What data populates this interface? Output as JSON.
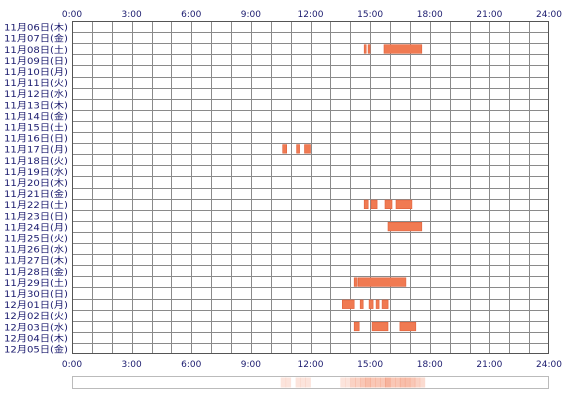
{
  "chart_data": {
    "type": "timeline",
    "x_range": [
      "0:00",
      "24:00"
    ],
    "x_ticks": [
      "0:00",
      "3:00",
      "6:00",
      "9:00",
      "12:00",
      "15:00",
      "18:00",
      "21:00",
      "24:00"
    ],
    "rows": [
      {
        "label": "11月06日(木)",
        "segments": []
      },
      {
        "label": "11月07日(金)",
        "segments": []
      },
      {
        "label": "11月08日(土)",
        "segments": [
          [
            14.7,
            14.8
          ],
          [
            14.9,
            15.0
          ],
          [
            15.7,
            17.6
          ]
        ]
      },
      {
        "label": "11月09日(日)",
        "segments": []
      },
      {
        "label": "11月10日(月)",
        "segments": []
      },
      {
        "label": "11月11日(火)",
        "segments": []
      },
      {
        "label": "11月12日(水)",
        "segments": []
      },
      {
        "label": "11月13日(木)",
        "segments": []
      },
      {
        "label": "11月14日(金)",
        "segments": []
      },
      {
        "label": "11月15日(土)",
        "segments": []
      },
      {
        "label": "11月16日(日)",
        "segments": []
      },
      {
        "label": "11月17日(月)",
        "segments": [
          [
            10.6,
            10.8
          ],
          [
            11.3,
            11.45
          ],
          [
            11.7,
            12.0
          ]
        ]
      },
      {
        "label": "11月18日(火)",
        "segments": []
      },
      {
        "label": "11月19日(水)",
        "segments": []
      },
      {
        "label": "11月20日(木)",
        "segments": []
      },
      {
        "label": "11月21日(金)",
        "segments": []
      },
      {
        "label": "11月22日(土)",
        "segments": [
          [
            14.7,
            14.9
          ],
          [
            15.05,
            15.35
          ],
          [
            15.75,
            16.1
          ],
          [
            16.3,
            17.1
          ]
        ]
      },
      {
        "label": "11月23日(日)",
        "segments": []
      },
      {
        "label": "11月24日(月)",
        "segments": [
          [
            15.9,
            17.6
          ]
        ]
      },
      {
        "label": "11月25日(火)",
        "segments": []
      },
      {
        "label": "11月26日(水)",
        "segments": []
      },
      {
        "label": "11月27日(木)",
        "segments": []
      },
      {
        "label": "11月28日(金)",
        "segments": []
      },
      {
        "label": "11月29日(土)",
        "segments": [
          [
            14.2,
            14.35
          ],
          [
            14.4,
            16.8
          ]
        ]
      },
      {
        "label": "11月30日(日)",
        "segments": []
      },
      {
        "label": "12月01日(月)",
        "segments": [
          [
            13.6,
            14.2
          ],
          [
            14.5,
            14.65
          ],
          [
            14.95,
            15.15
          ],
          [
            15.3,
            15.45
          ],
          [
            15.6,
            15.9
          ]
        ]
      },
      {
        "label": "12月02日(火)",
        "segments": []
      },
      {
        "label": "12月03日(水)",
        "segments": [
          [
            14.2,
            14.45
          ],
          [
            15.1,
            15.9
          ],
          [
            16.5,
            17.3
          ]
        ]
      },
      {
        "label": "12月04日(木)",
        "segments": []
      },
      {
        "label": "12月05日(金)",
        "segments": []
      }
    ],
    "colors": {
      "segment": "#f07a52",
      "segment_edge": "#e0603a",
      "grid": "#8a8a8a",
      "border": "#555555",
      "text": "#1a1a6e",
      "summary_border": "#bbbbbb"
    }
  }
}
